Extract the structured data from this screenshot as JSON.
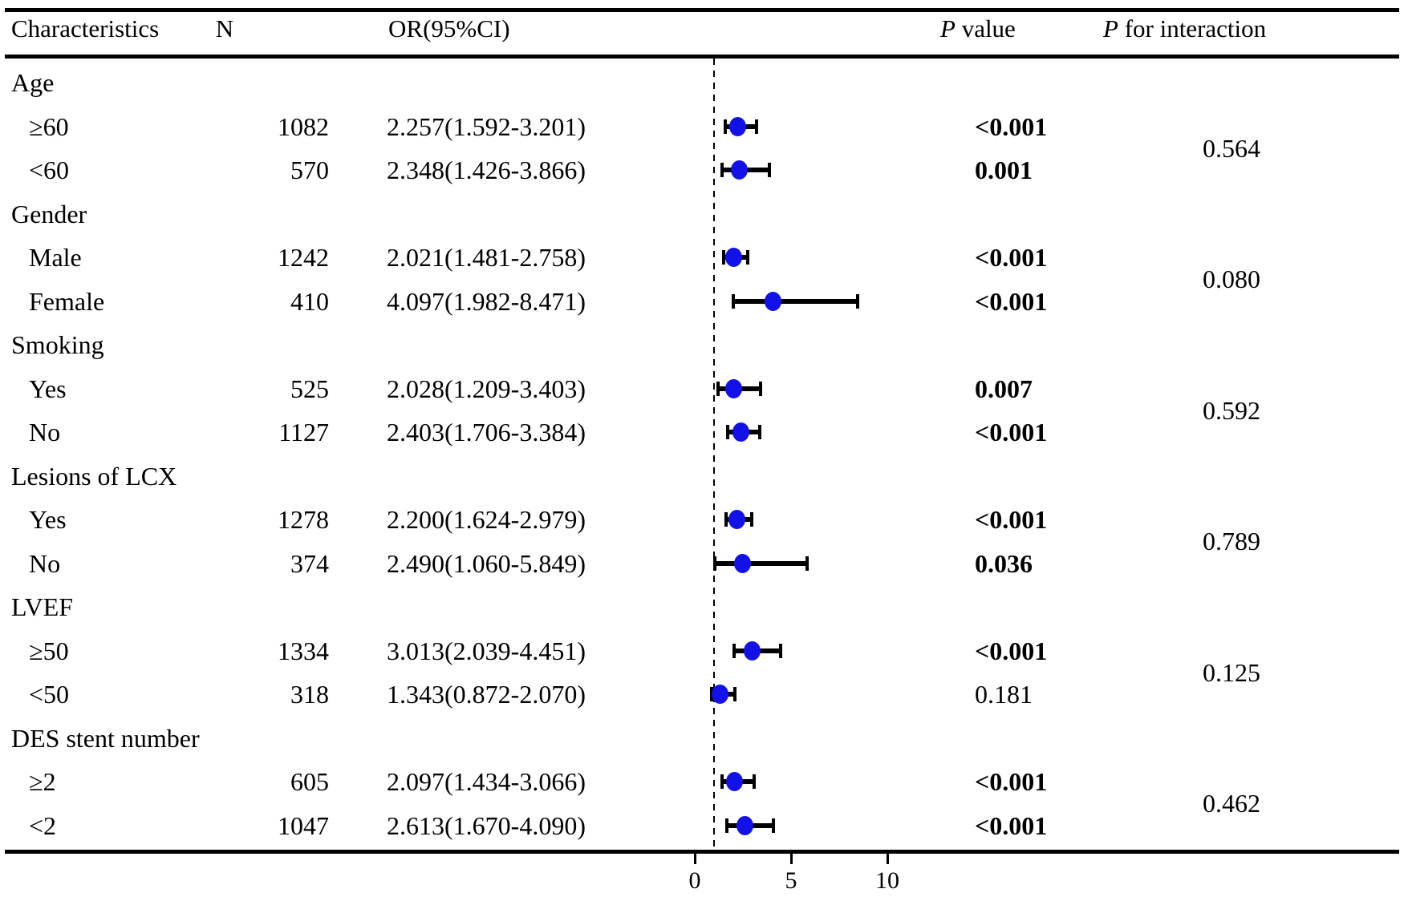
{
  "header": {
    "characteristics": "Characteristics",
    "n": "N",
    "or_ci": "OR(95%CI)",
    "p_label": "P",
    "p_value_suffix": " value",
    "p_interaction_suffix": " for interaction"
  },
  "colors": {
    "marker_blue": "#1212e8",
    "line_black": "#000000"
  },
  "chart_data": {
    "type": "forest",
    "or_axis": {
      "ticks": [
        0,
        5,
        10
      ],
      "tick_labels": [
        "0",
        "5",
        "10"
      ],
      "reference_line": 1,
      "range": [
        0,
        12
      ]
    },
    "groups": [
      {
        "label": "Age",
        "p_interaction": "0.564",
        "rows": [
          {
            "label": "≥60",
            "n": "1082",
            "or_text": "2.257(1.592-3.201)",
            "or": 2.257,
            "ci_low": 1.592,
            "ci_high": 3.201,
            "p": "<0.001",
            "p_bold": true
          },
          {
            "label": "<60",
            "n": "570",
            "or_text": "2.348(1.426-3.866)",
            "or": 2.348,
            "ci_low": 1.426,
            "ci_high": 3.866,
            "p": "0.001",
            "p_bold": true
          }
        ]
      },
      {
        "label": "Gender",
        "p_interaction": "0.080",
        "rows": [
          {
            "label": "Male",
            "n": "1242",
            "or_text": "2.021(1.481-2.758)",
            "or": 2.021,
            "ci_low": 1.481,
            "ci_high": 2.758,
            "p": "<0.001",
            "p_bold": true
          },
          {
            "label": "Female",
            "n": "410",
            "or_text": "4.097(1.982-8.471)",
            "or": 4.097,
            "ci_low": 1.982,
            "ci_high": 8.471,
            "p": "<0.001",
            "p_bold": true
          }
        ]
      },
      {
        "label": "Smoking",
        "p_interaction": "0.592",
        "rows": [
          {
            "label": "Yes",
            "n": "525",
            "or_text": "2.028(1.209-3.403)",
            "or": 2.028,
            "ci_low": 1.209,
            "ci_high": 3.403,
            "p": "0.007",
            "p_bold": true
          },
          {
            "label": "No",
            "n": "1127",
            "or_text": "2.403(1.706-3.384)",
            "or": 2.403,
            "ci_low": 1.706,
            "ci_high": 3.384,
            "p": "<0.001",
            "p_bold": true
          }
        ]
      },
      {
        "label": "Lesions of LCX",
        "p_interaction": "0.789",
        "rows": [
          {
            "label": "Yes",
            "n": "1278",
            "or_text": "2.200(1.624-2.979)",
            "or": 2.2,
            "ci_low": 1.624,
            "ci_high": 2.979,
            "p": "<0.001",
            "p_bold": true
          },
          {
            "label": "No",
            "n": "374",
            "or_text": "2.490(1.060-5.849)",
            "or": 2.49,
            "ci_low": 1.06,
            "ci_high": 5.849,
            "p": "0.036",
            "p_bold": true
          }
        ]
      },
      {
        "label": "LVEF",
        "p_interaction": "0.125",
        "rows": [
          {
            "label": "≥50",
            "n": "1334",
            "or_text": "3.013(2.039-4.451)",
            "or": 3.013,
            "ci_low": 2.039,
            "ci_high": 4.451,
            "p": "<0.001",
            "p_bold": true
          },
          {
            "label": "<50",
            "n": "318",
            "or_text": "1.343(0.872-2.070)",
            "or": 1.343,
            "ci_low": 0.872,
            "ci_high": 2.07,
            "p": "0.181",
            "p_bold": false
          }
        ]
      },
      {
        "label": "DES stent number",
        "p_interaction": "0.462",
        "rows": [
          {
            "label": "≥2",
            "n": "605",
            "or_text": "2.097(1.434-3.066)",
            "or": 2.097,
            "ci_low": 1.434,
            "ci_high": 3.066,
            "p": "<0.001",
            "p_bold": true
          },
          {
            "label": "<2",
            "n": "1047",
            "or_text": "2.613(1.670-4.090)",
            "or": 2.613,
            "ci_low": 1.67,
            "ci_high": 4.09,
            "p": "<0.001",
            "p_bold": true
          }
        ]
      }
    ]
  }
}
